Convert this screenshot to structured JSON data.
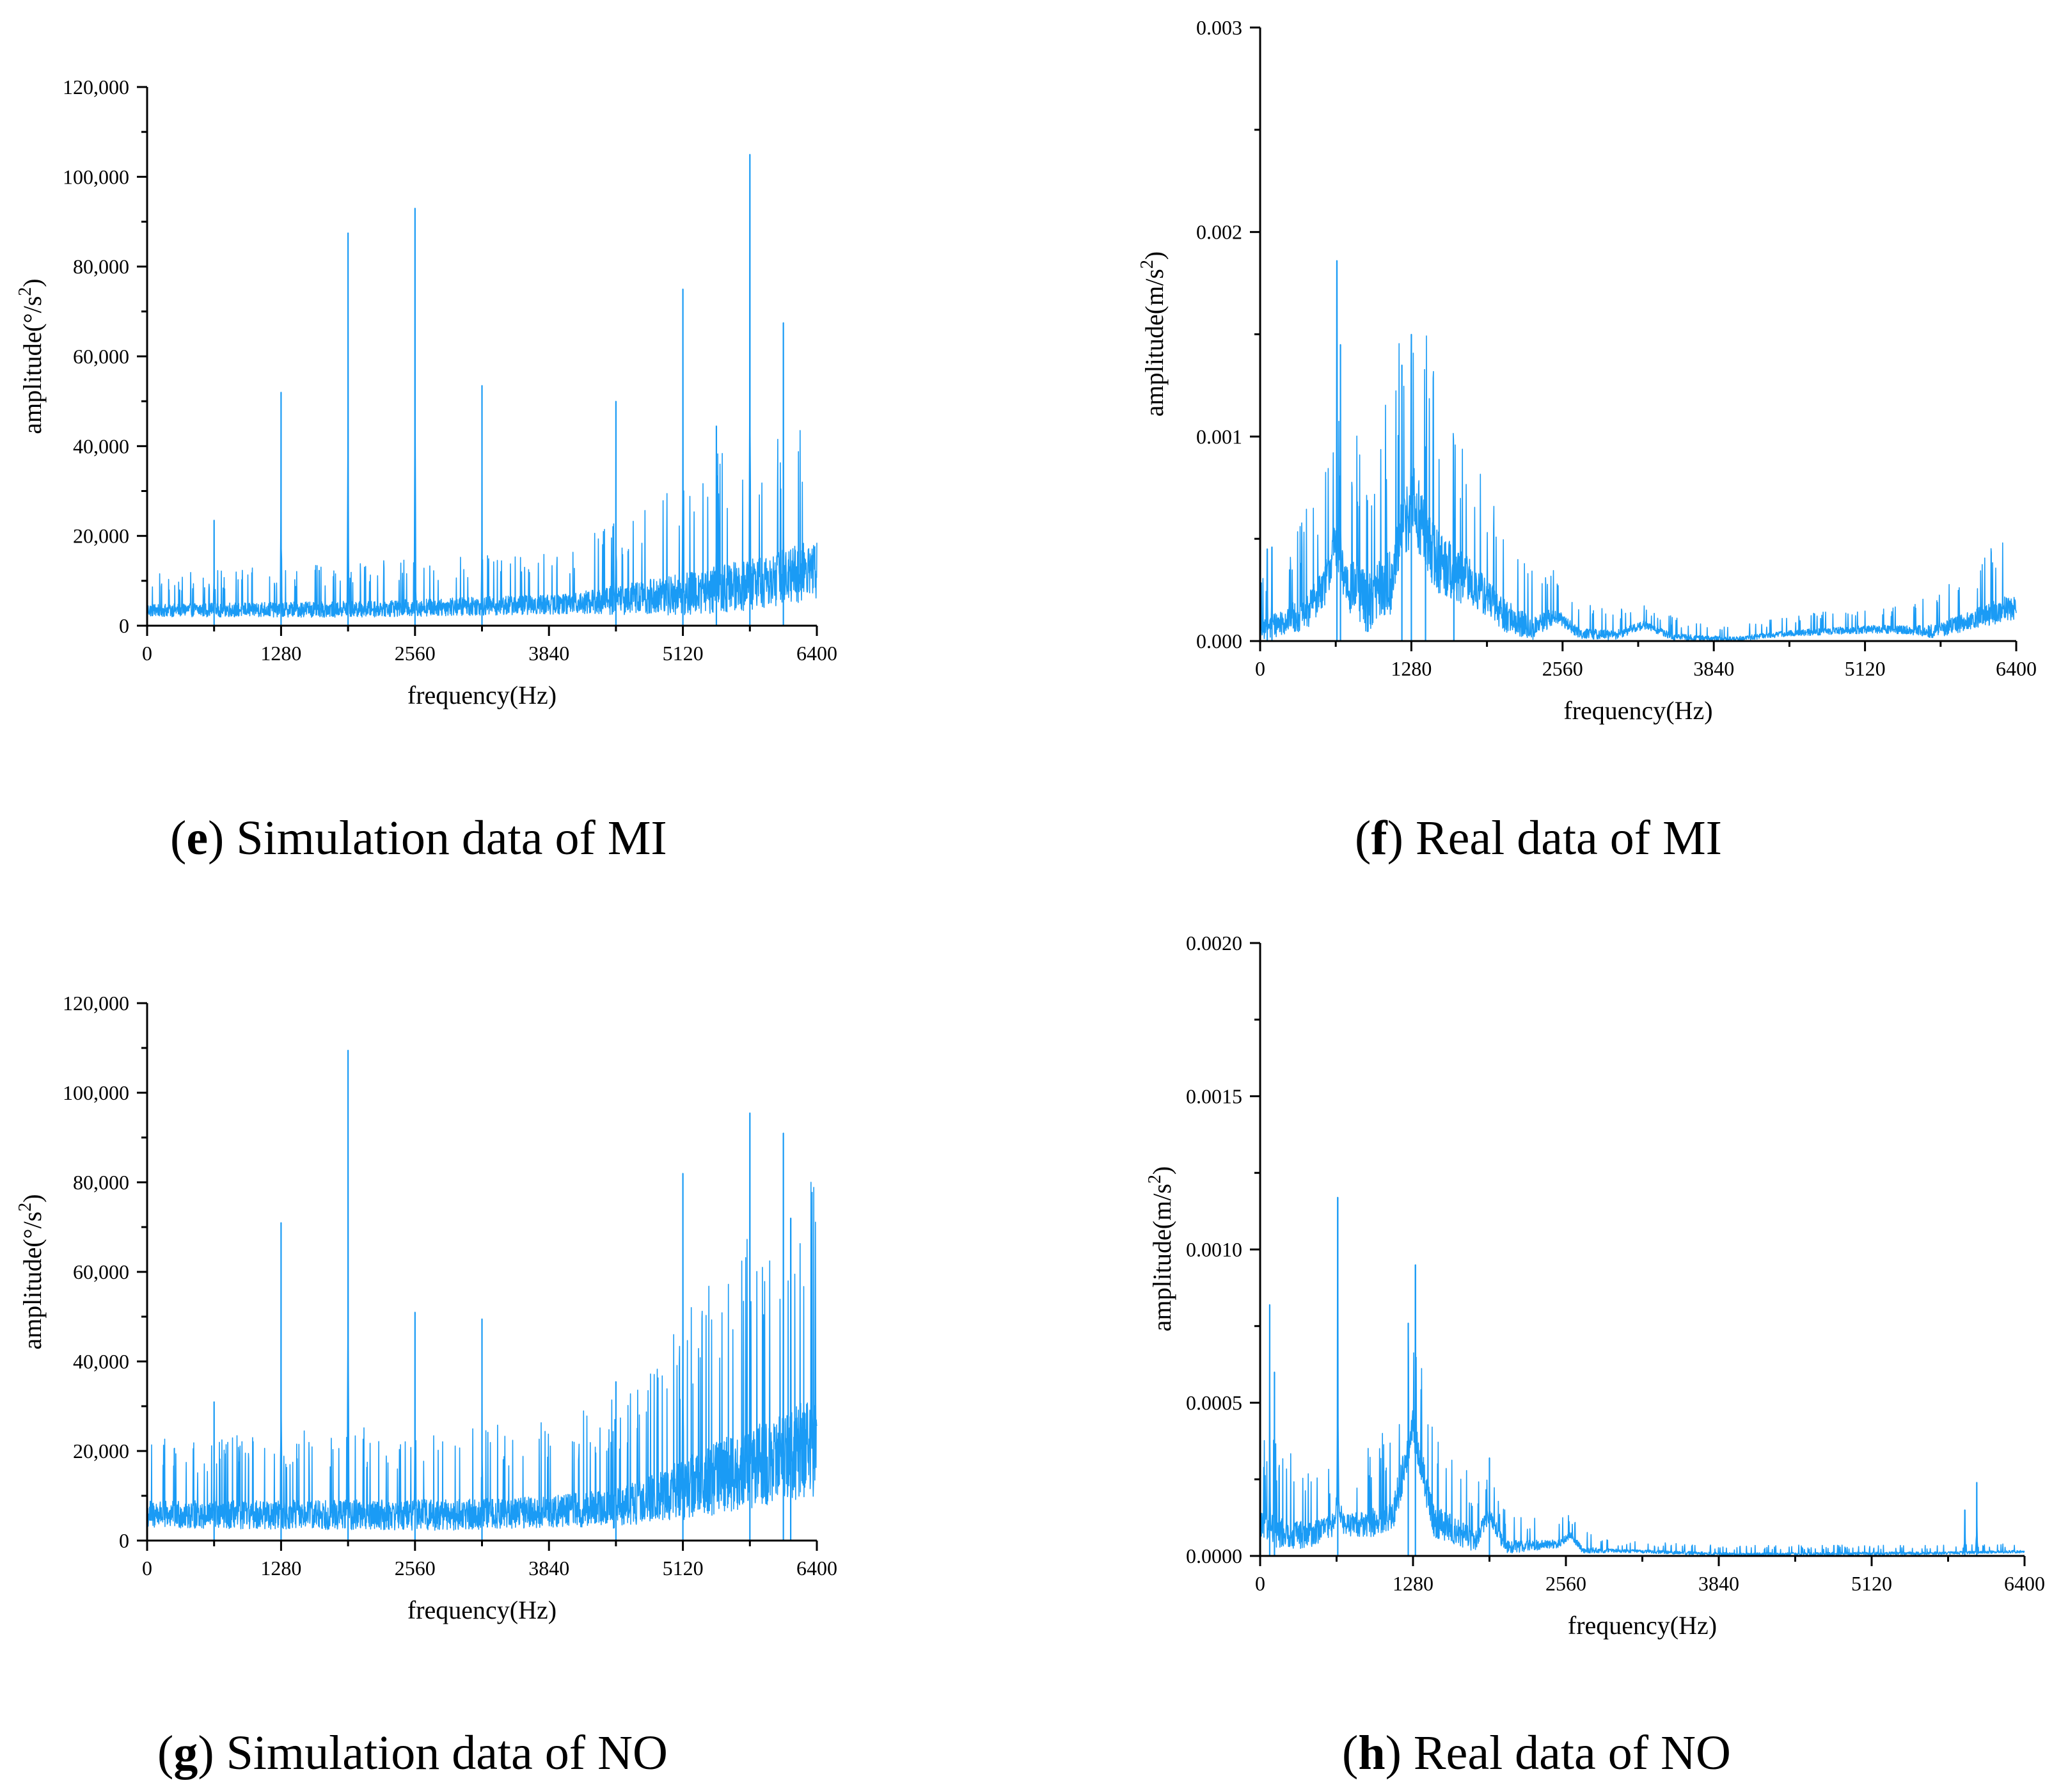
{
  "series_color": "#1a9bf5",
  "chart_data": [
    {
      "id": "e",
      "type": "line",
      "caption_letter": "e",
      "caption_text": " Simulation data of MI",
      "caption_open": "(",
      "caption_close": ")",
      "xlabel": "frequency(Hz)",
      "ylabel": "amplitude(°/s²)",
      "ylabel_base": "amplitude(°/s",
      "ylabel_sup": "2",
      "ylabel_end": ")",
      "xlim": [
        0,
        6400
      ],
      "ylim": [
        0,
        120000
      ],
      "xticks": [
        0,
        1280,
        2560,
        3840,
        5120,
        6400
      ],
      "xtick_labels": [
        "0",
        "1280",
        "2560",
        "3840",
        "5120",
        "6400"
      ],
      "yticks": [
        0,
        20000,
        40000,
        60000,
        80000,
        100000,
        120000
      ],
      "ytick_labels": [
        "0",
        "20,000",
        "40,000",
        "60,000",
        "80,000",
        "100,000",
        "120,000"
      ],
      "baseline": [
        [
          0,
          3500
        ],
        [
          2000,
          3800
        ],
        [
          4000,
          5000
        ],
        [
          5000,
          7000
        ],
        [
          5600,
          9000
        ],
        [
          6000,
          11000
        ],
        [
          6400,
          13000
        ]
      ],
      "noise": [
        [
          0,
          2500
        ],
        [
          4000,
          4000
        ],
        [
          5000,
          8000
        ],
        [
          5600,
          10000
        ],
        [
          6400,
          12000
        ]
      ],
      "peaks": [
        [
          640,
          23500
        ],
        [
          1280,
          52000
        ],
        [
          1920,
          87500
        ],
        [
          2560,
          93000
        ],
        [
          3200,
          53500
        ],
        [
          4480,
          50000
        ],
        [
          5120,
          75000
        ],
        [
          5440,
          44500
        ],
        [
          5760,
          105000
        ],
        [
          6080,
          67500
        ]
      ]
    },
    {
      "id": "f",
      "type": "line",
      "caption_letter": "f",
      "caption_text": " Real data of MI",
      "caption_open": "(",
      "caption_close": ")",
      "xlabel": "frequency(Hz)",
      "ylabel": "amplitude(m/s²)",
      "ylabel_base": "amplitude(m/s",
      "ylabel_sup": "2",
      "ylabel_end": ")",
      "xlim": [
        0,
        6400
      ],
      "ylim": [
        0,
        0.003
      ],
      "xticks": [
        0,
        1280,
        2560,
        3840,
        5120,
        6400
      ],
      "xtick_labels": [
        "0",
        "1280",
        "2560",
        "3840",
        "5120",
        "6400"
      ],
      "yticks": [
        0,
        0.001,
        0.002,
        0.003
      ],
      "ytick_labels": [
        "0.000",
        "0.001",
        "0.002",
        "0.003"
      ],
      "baseline": [
        [
          0,
          5e-05
        ],
        [
          200,
          0.0001
        ],
        [
          400,
          0.00015
        ],
        [
          560,
          0.0003
        ],
        [
          640,
          0.0005
        ],
        [
          720,
          0.0003
        ],
        [
          900,
          0.0002
        ],
        [
          1100,
          0.0003
        ],
        [
          1280,
          0.0007
        ],
        [
          1500,
          0.0004
        ],
        [
          1800,
          0.00028
        ],
        [
          2100,
          0.00012
        ],
        [
          2300,
          6e-05
        ],
        [
          2500,
          0.00013
        ],
        [
          2700,
          4e-05
        ],
        [
          3000,
          3e-05
        ],
        [
          3250,
          8e-05
        ],
        [
          3500,
          2e-05
        ],
        [
          4000,
          1e-05
        ],
        [
          4500,
          4e-05
        ],
        [
          5200,
          6e-05
        ],
        [
          5700,
          5e-05
        ],
        [
          6000,
          0.0001
        ],
        [
          6400,
          0.00018
        ]
      ],
      "noise": [
        [
          0,
          8e-05
        ],
        [
          600,
          0.0002
        ],
        [
          1280,
          0.00035
        ],
        [
          1900,
          0.00018
        ],
        [
          2600,
          5e-05
        ],
        [
          4000,
          2e-05
        ],
        [
          5500,
          4e-05
        ],
        [
          6400,
          0.00012
        ]
      ],
      "peaks": [
        [
          60,
          0.00045
        ],
        [
          100,
          0.00046
        ],
        [
          650,
          0.00186
        ],
        [
          680,
          0.00145
        ],
        [
          1200,
          0.00135
        ],
        [
          1280,
          0.0015
        ],
        [
          1400,
          0.00095
        ],
        [
          1640,
          0.0006
        ]
      ]
    },
    {
      "id": "g",
      "type": "line",
      "caption_letter": "g",
      "caption_text": " Simulation data of NO",
      "caption_open": "(",
      "caption_close": ")",
      "xlabel": "frequency(Hz)",
      "ylabel": "amplitude(°/s²)",
      "ylabel_base": "amplitude(°/s",
      "ylabel_sup": "2",
      "ylabel_end": ")",
      "xlim": [
        0,
        6400
      ],
      "ylim": [
        0,
        120000
      ],
      "xticks": [
        0,
        1280,
        2560,
        3840,
        5120,
        6400
      ],
      "xtick_labels": [
        "0",
        "1280",
        "2560",
        "3840",
        "5120",
        "6400"
      ],
      "yticks": [
        0,
        20000,
        40000,
        60000,
        80000,
        100000,
        120000
      ],
      "ytick_labels": [
        "0",
        "20,000",
        "40,000",
        "60,000",
        "80,000",
        "100,000",
        "120,000"
      ],
      "baseline": [
        [
          0,
          6000
        ],
        [
          3000,
          6000
        ],
        [
          4500,
          7500
        ],
        [
          5000,
          11000
        ],
        [
          5500,
          15000
        ],
        [
          6000,
          19000
        ],
        [
          6400,
          22000
        ]
      ],
      "noise": [
        [
          0,
          5500
        ],
        [
          4000,
          6500
        ],
        [
          4800,
          9000
        ],
        [
          5300,
          14000
        ],
        [
          6400,
          20000
        ]
      ],
      "peaks": [
        [
          640,
          31000
        ],
        [
          1280,
          71000
        ],
        [
          1920,
          109500
        ],
        [
          2560,
          51000
        ],
        [
          3200,
          49500
        ],
        [
          4480,
          35500
        ],
        [
          5120,
          82000
        ],
        [
          5760,
          95500
        ],
        [
          6080,
          91000
        ],
        [
          6150,
          72000
        ]
      ]
    },
    {
      "id": "h",
      "type": "line",
      "caption_letter": "h",
      "caption_text": " Real data of NO",
      "caption_open": "(",
      "caption_close": ")",
      "xlabel": "frequency(Hz)",
      "ylabel": "amplitude(m/s²)",
      "ylabel_base": "amplitude(m/s",
      "ylabel_sup": "2",
      "ylabel_end": ")",
      "xlim": [
        0,
        6400
      ],
      "ylim": [
        0,
        0.002
      ],
      "xticks": [
        0,
        1280,
        2560,
        3840,
        5120,
        6400
      ],
      "xtick_labels": [
        "0",
        "1280",
        "2560",
        "3840",
        "5120",
        "6400"
      ],
      "yticks": [
        0,
        0.0005,
        0.001,
        0.0015,
        0.002
      ],
      "ytick_labels": [
        "0.0000",
        "0.0005",
        "0.0010",
        "0.0015",
        "0.0020"
      ],
      "baseline": [
        [
          0,
          0.0001
        ],
        [
          150,
          8e-05
        ],
        [
          400,
          7e-05
        ],
        [
          600,
          0.0001
        ],
        [
          650,
          0.00018
        ],
        [
          700,
          0.0001
        ],
        [
          1100,
          0.00012
        ],
        [
          1280,
          0.00042
        ],
        [
          1450,
          0.00012
        ],
        [
          1800,
          5e-05
        ],
        [
          1920,
          0.00014
        ],
        [
          2050,
          3e-05
        ],
        [
          2500,
          4e-05
        ],
        [
          2600,
          7e-05
        ],
        [
          2700,
          2e-05
        ],
        [
          3200,
          1.5e-05
        ],
        [
          4000,
          5e-06
        ],
        [
          5000,
          8e-06
        ],
        [
          5800,
          1e-05
        ],
        [
          6400,
          1.5e-05
        ]
      ],
      "noise": [
        [
          0,
          0.0001
        ],
        [
          700,
          6e-05
        ],
        [
          1280,
          0.00012
        ],
        [
          2000,
          4e-05
        ],
        [
          3000,
          1e-05
        ],
        [
          6400,
          8e-06
        ]
      ],
      "peaks": [
        [
          80,
          0.00082
        ],
        [
          120,
          0.0006
        ],
        [
          650,
          0.00117
        ],
        [
          1240,
          0.00076
        ],
        [
          1300,
          0.00095
        ],
        [
          1920,
          0.00032
        ],
        [
          5900,
          0.00015
        ],
        [
          6000,
          0.00024
        ]
      ]
    }
  ]
}
